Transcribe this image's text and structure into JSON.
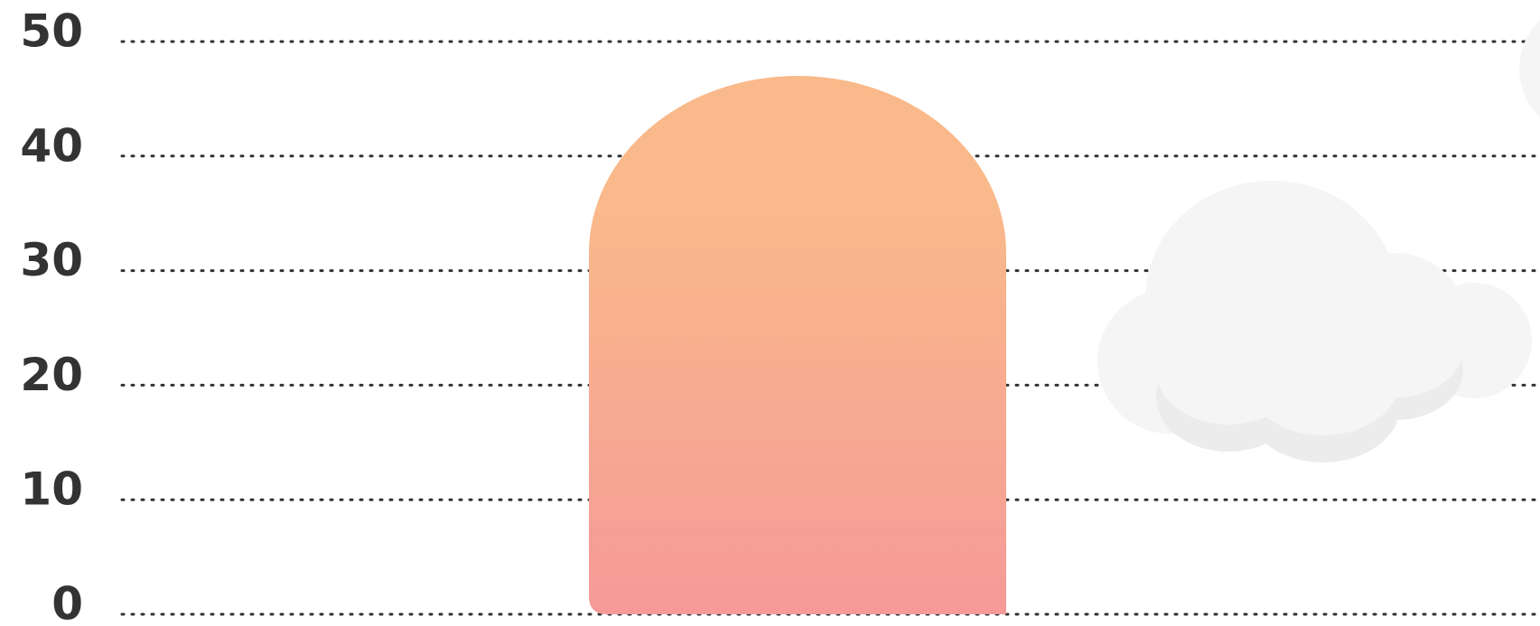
{
  "chart_data": {
    "type": "bar",
    "categories": [
      null
    ],
    "values": [
      47
    ],
    "gradient": [
      "#f9b98a",
      "#f59a98"
    ],
    "ylim": [
      0,
      50
    ],
    "yticks": [
      0,
      10,
      20,
      30,
      40,
      50
    ],
    "grid": true
  }
}
